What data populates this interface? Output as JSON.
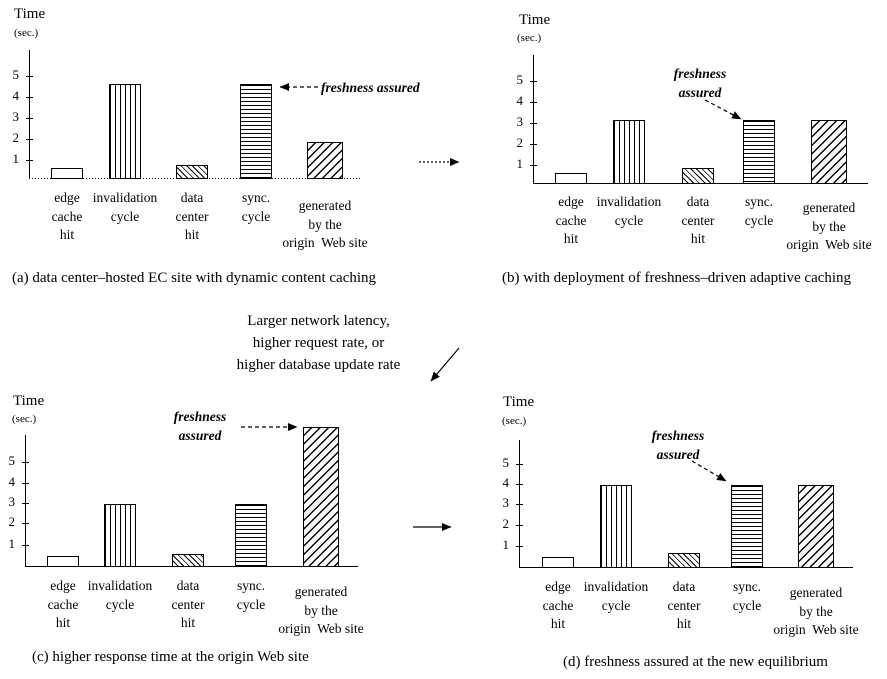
{
  "axis": {
    "title": "Time",
    "unit": "(sec.)"
  },
  "note": {
    "line1": "Larger network latency,",
    "line2": "higher request rate, or",
    "line3": "higher database update rate"
  },
  "annotation_label": "freshness assured",
  "chart_data": [
    {
      "id": "a",
      "type": "bar",
      "title": "(a) data center–hosted EC site with dynamic content caching",
      "ylabel": "Time (sec.)",
      "ylim": [
        0,
        6
      ],
      "yticks": [
        1,
        2,
        3,
        4,
        5
      ],
      "grid": false,
      "categories": [
        "edge cache hit",
        "invalidation cycle",
        "data center hit",
        "sync. cycle",
        "generated by the origin Web site"
      ],
      "category_lines": [
        [
          "edge",
          "cache",
          "hit"
        ],
        [
          "invalidation",
          "cycle"
        ],
        [
          "data",
          "center",
          "hit"
        ],
        [
          "sync.",
          "cycle"
        ],
        [
          "generated",
          "by the",
          "origin  Web site"
        ]
      ],
      "values": [
        0.5,
        4.5,
        0.6,
        4.5,
        1.7
      ],
      "bar_patterns": [
        "outline",
        "vertical-lines",
        "back-diagonal-hatch",
        "horizontal-lines",
        "forward-diagonal-hatch"
      ],
      "annotation": {
        "lines": [
          "freshness assured"
        ],
        "target": "sync. cycle"
      }
    },
    {
      "id": "b",
      "type": "bar",
      "title": "(b) with deployment of freshness–driven adaptive caching",
      "ylabel": "Time (sec.)",
      "ylim": [
        0,
        6
      ],
      "yticks": [
        1,
        2,
        3,
        4,
        5
      ],
      "grid": false,
      "categories": [
        "edge cache hit",
        "invalidation cycle",
        "data center hit",
        "sync. cycle",
        "generated by the origin Web site"
      ],
      "category_lines": [
        [
          "edge",
          "cache",
          "hit"
        ],
        [
          "invalidation",
          "cycle"
        ],
        [
          "data",
          "center",
          "hit"
        ],
        [
          "sync.",
          "cycle"
        ],
        [
          "generated",
          "by the",
          "origin  Web site"
        ]
      ],
      "values": [
        0.5,
        3,
        0.7,
        3,
        3
      ],
      "bar_patterns": [
        "outline",
        "vertical-lines",
        "back-diagonal-hatch",
        "horizontal-lines",
        "forward-diagonal-hatch"
      ],
      "annotation": {
        "lines": [
          "freshness",
          "assured"
        ],
        "target": "sync. cycle"
      }
    },
    {
      "id": "c",
      "type": "bar",
      "title": "(c) higher response time at the origin Web site",
      "ylabel": "Time (sec.)",
      "ylim": [
        0,
        7
      ],
      "yticks": [
        1,
        2,
        3,
        4,
        5
      ],
      "grid": false,
      "categories": [
        "edge cache hit",
        "invalidation cycle",
        "data center hit",
        "sync. cycle",
        "generated by the origin Web site"
      ],
      "category_lines": [
        [
          "edge",
          "cache",
          "hit"
        ],
        [
          "invalidation",
          "cycle"
        ],
        [
          "data",
          "center",
          "hit"
        ],
        [
          "sync.",
          "cycle"
        ],
        [
          "generated",
          "by the",
          "origin  Web site"
        ]
      ],
      "values": [
        0.5,
        3,
        0.6,
        3,
        6.8
      ],
      "bar_patterns": [
        "outline",
        "vertical-lines",
        "back-diagonal-hatch",
        "horizontal-lines",
        "forward-diagonal-hatch"
      ],
      "annotation": {
        "lines": [
          "freshness",
          "assured"
        ],
        "target": "generated by the origin Web site"
      }
    },
    {
      "id": "d",
      "type": "bar",
      "title": "(d) freshness assured at the new equilibrium",
      "ylabel": "Time (sec.)",
      "ylim": [
        0,
        6
      ],
      "yticks": [
        1,
        2,
        3,
        4,
        5
      ],
      "grid": false,
      "categories": [
        "edge cache hit",
        "invalidation cycle",
        "data center hit",
        "sync. cycle",
        "generated by the origin Web site"
      ],
      "category_lines": [
        [
          "edge",
          "cache",
          "hit"
        ],
        [
          "invalidation",
          "cycle"
        ],
        [
          "data",
          "center",
          "hit"
        ],
        [
          "sync.",
          "cycle"
        ],
        [
          "generated",
          "by the",
          "origin  Web site"
        ]
      ],
      "values": [
        0.5,
        4,
        0.7,
        4,
        4
      ],
      "bar_patterns": [
        "outline",
        "vertical-lines",
        "back-diagonal-hatch",
        "horizontal-lines",
        "forward-diagonal-hatch"
      ],
      "annotation": {
        "lines": [
          "freshness",
          "assured"
        ],
        "target": "sync. cycle"
      }
    }
  ]
}
